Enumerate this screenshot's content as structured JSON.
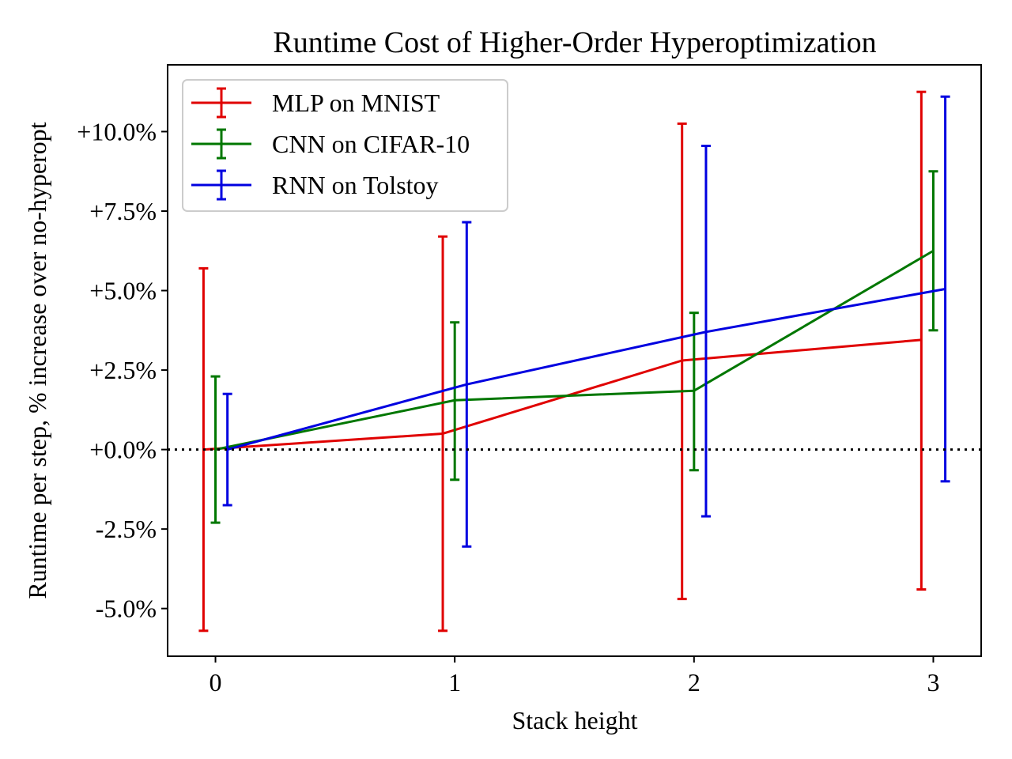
{
  "chart_data": {
    "type": "line",
    "title": "Runtime Cost of Higher-Order Hyperoptimization",
    "xlabel": "Stack height",
    "ylabel": "Runtime per step, % increase over no-hyperopt",
    "xlim": [
      -0.2,
      3.2
    ],
    "ylim": [
      -6.5,
      12.1
    ],
    "x_ticks": [
      0,
      1,
      2,
      3
    ],
    "x_tick_labels": [
      "0",
      "1",
      "2",
      "3"
    ],
    "y_ticks": [
      -5.0,
      -2.5,
      0.0,
      2.5,
      5.0,
      7.5,
      10.0
    ],
    "y_tick_labels": [
      "-5.0%",
      "-2.5%",
      "+0.0%",
      "+2.5%",
      "+5.0%",
      "+7.5%",
      "+10.0%"
    ],
    "reference_line": {
      "y": 0.0,
      "style": "dotted",
      "color": "#000000"
    },
    "legend_position": "upper-left",
    "series": [
      {
        "name": "MLP on MNIST",
        "color": "#e00000",
        "x": [
          0,
          1,
          2,
          3
        ],
        "x_offset": -0.05,
        "values": [
          0.0,
          0.5,
          2.8,
          3.45
        ],
        "err_low": [
          -5.7,
          -5.7,
          -4.7,
          -4.4
        ],
        "err_high": [
          5.7,
          6.7,
          10.25,
          11.25
        ]
      },
      {
        "name": "CNN on CIFAR-10",
        "color": "#007700",
        "x": [
          0,
          1,
          2,
          3
        ],
        "x_offset": 0.0,
        "values": [
          0.0,
          1.55,
          1.85,
          6.25
        ],
        "err_low": [
          -2.3,
          -0.95,
          -0.65,
          3.75
        ],
        "err_high": [
          2.3,
          4.0,
          4.3,
          8.75
        ]
      },
      {
        "name": "RNN on Tolstoy",
        "color": "#0000e0",
        "x": [
          0,
          1,
          2,
          3
        ],
        "x_offset": 0.05,
        "values": [
          0.0,
          2.05,
          3.7,
          5.05
        ],
        "err_low": [
          -1.75,
          -3.05,
          -2.1,
          -1.0
        ],
        "err_high": [
          1.75,
          7.15,
          9.55,
          11.1
        ]
      }
    ]
  }
}
